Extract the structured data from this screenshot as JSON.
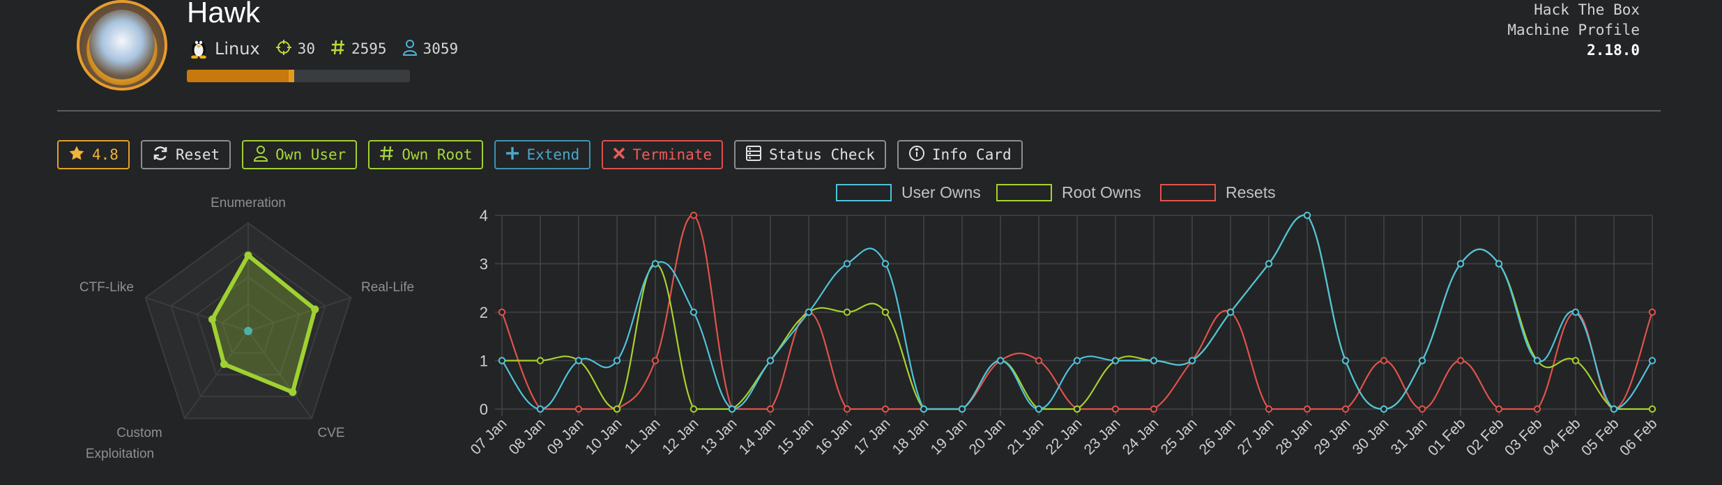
{
  "machine": {
    "name": "Hawk",
    "os": "Linux",
    "points": "30",
    "root_owns": "2595",
    "user_owns": "3059",
    "progress": 0.48
  },
  "tool": {
    "line1": "Hack The Box",
    "line2": "Machine Profile",
    "version": "2.18.0"
  },
  "buttons": {
    "rating": "4.8",
    "reset": "Reset",
    "own_user": "Own User",
    "own_root": "Own Root",
    "extend": "Extend",
    "terminate": "Terminate",
    "status_check": "Status Check",
    "info_card": "Info Card"
  },
  "colors": {
    "user": "#4fc3dc",
    "root": "#a8d22e",
    "resets": "#e0534c",
    "radar": "#9fd132",
    "accent": "#e79c2d"
  },
  "chart_data": [
    {
      "type": "radar",
      "axes": [
        "Enumeration",
        "Real-Life",
        "CVE",
        "Custom Exploitation",
        "CTF-Like"
      ],
      "values": [
        7,
        6.5,
        7,
        3.8,
        3.5
      ],
      "range": [
        0,
        10
      ]
    },
    {
      "type": "line",
      "x": [
        "07 Jan",
        "08 Jan",
        "09 Jan",
        "10 Jan",
        "11 Jan",
        "12 Jan",
        "13 Jan",
        "14 Jan",
        "15 Jan",
        "16 Jan",
        "17 Jan",
        "18 Jan",
        "19 Jan",
        "20 Jan",
        "21 Jan",
        "22 Jan",
        "23 Jan",
        "24 Jan",
        "25 Jan",
        "26 Jan",
        "27 Jan",
        "28 Jan",
        "29 Jan",
        "30 Jan",
        "31 Jan",
        "01 Feb",
        "02 Feb",
        "03 Feb",
        "04 Feb",
        "05 Feb",
        "06 Feb"
      ],
      "series": [
        {
          "name": "User Owns",
          "values": [
            1,
            0,
            1,
            1,
            3,
            2,
            0,
            1,
            2,
            3,
            3,
            0,
            0,
            1,
            0,
            1,
            1,
            1,
            1,
            2,
            3,
            4,
            1,
            0,
            1,
            3,
            3,
            1,
            2,
            0,
            1
          ]
        },
        {
          "name": "Root Owns",
          "values": [
            1,
            1,
            1,
            0,
            3,
            0,
            0,
            1,
            2,
            2,
            2,
            0,
            0,
            1,
            0,
            0,
            1,
            1,
            1,
            2,
            3,
            4,
            1,
            0,
            1,
            3,
            3,
            1,
            1,
            0,
            0
          ]
        },
        {
          "name": "Resets",
          "values": [
            2,
            0,
            0,
            0,
            1,
            4,
            0,
            0,
            2,
            0,
            0,
            0,
            0,
            1,
            1,
            0,
            0,
            0,
            1,
            2,
            0,
            0,
            0,
            1,
            0,
            1,
            0,
            0,
            2,
            0,
            2
          ]
        }
      ],
      "ylim": [
        0,
        4
      ],
      "yticks": [
        "0",
        "1",
        "2",
        "3",
        "4"
      ],
      "grid": true,
      "legend": "top-center"
    }
  ]
}
